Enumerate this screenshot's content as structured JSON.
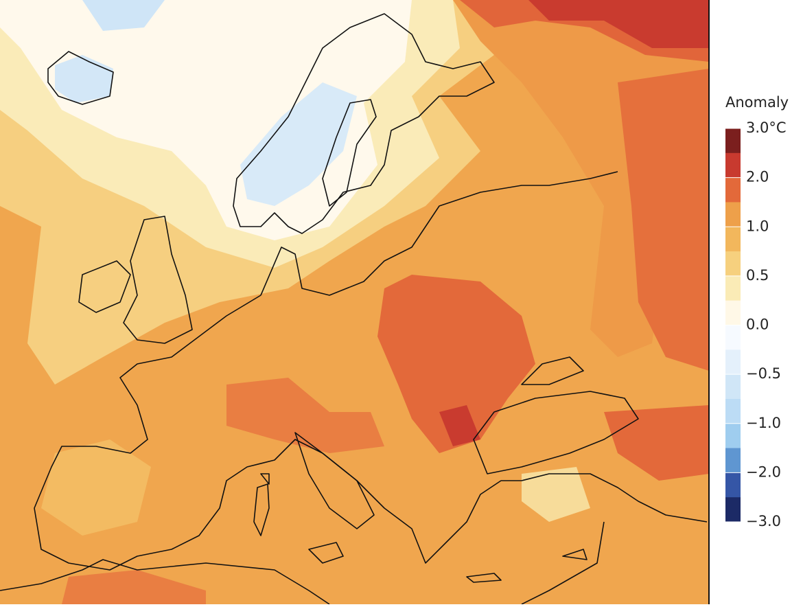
{
  "legend": {
    "title": "Anomaly",
    "ticks": [
      {
        "value": 3,
        "label": "3.0°C"
      },
      {
        "value": 2,
        "label": "2.0"
      },
      {
        "value": 1,
        "label": "1.0"
      },
      {
        "value": 0.5,
        "label": "0.5"
      },
      {
        "value": 0,
        "label": "0.0"
      },
      {
        "value": -0.5,
        "label": "−0.5"
      },
      {
        "value": -1,
        "label": "−1.0"
      },
      {
        "value": -2,
        "label": "−2.0"
      },
      {
        "value": -3,
        "label": "−3.0"
      }
    ],
    "colors": [
      "#7b1f1e",
      "#c83a2f",
      "#e3693a",
      "#eea04a",
      "#f2b75c",
      "#f6d07e",
      "#faebb6",
      "#fff8e7",
      "#f6faff",
      "#e4f0fb",
      "#d0e6f7",
      "#bcdcf5",
      "#9fcdef",
      "#5f96d1",
      "#3556a6",
      "#1c2a66"
    ]
  }
}
